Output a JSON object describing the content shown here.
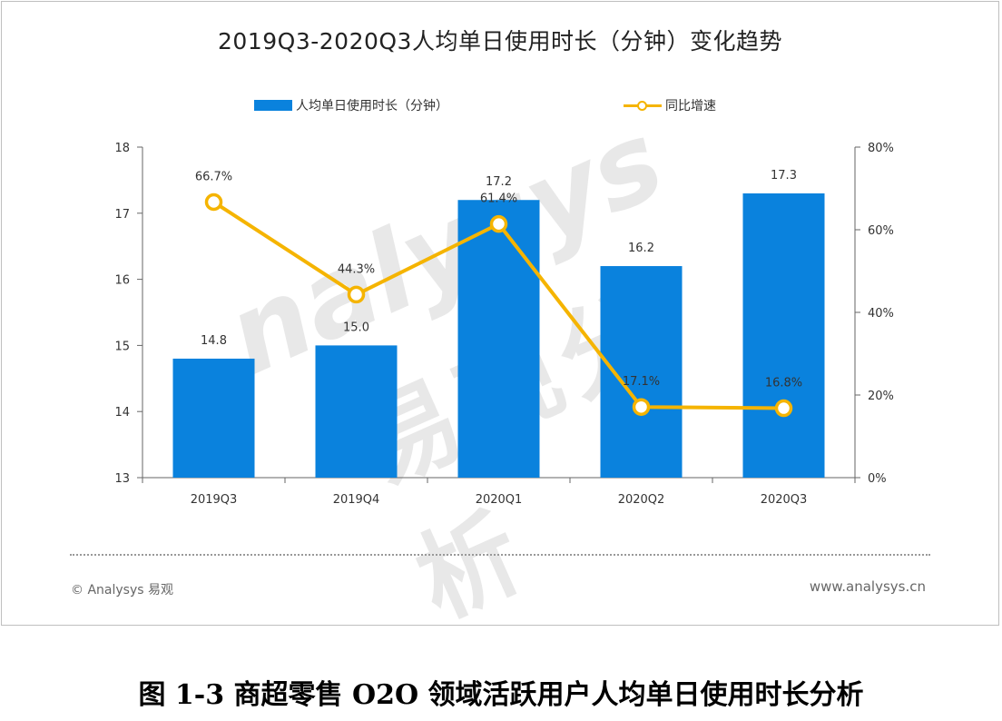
{
  "figure": {
    "title": "2019Q3-2020Q3人均单日使用时长（分钟）变化趋势",
    "watermark_en": "nalysys",
    "watermark_cn": "易观分析",
    "footer_left": "© Analysys 易观",
    "footer_right": "www.analysys.cn",
    "caption": "图 1-3 商超零售 O2O 领域活跃用户人均单日使用时长分析"
  },
  "legend": {
    "bar_label": "人均单日使用时长（分钟）",
    "line_label": "同比增速"
  },
  "colors": {
    "bar": "#0a82dd",
    "line": "#f5b400",
    "axis": "#666666"
  },
  "chart_data": {
    "type": "bar",
    "title": "2019Q3-2020Q3人均单日使用时长（分钟）变化趋势",
    "categories": [
      "2019Q3",
      "2019Q4",
      "2020Q1",
      "2020Q2",
      "2020Q3"
    ],
    "series": [
      {
        "name": "人均单日使用时长（分钟）",
        "type": "bar",
        "axis": "left",
        "values": [
          14.8,
          15.0,
          17.2,
          16.2,
          17.3
        ],
        "labels": [
          "14.8",
          "15.0",
          "17.2",
          "16.2",
          "17.3"
        ]
      },
      {
        "name": "同比增速",
        "type": "line",
        "axis": "right",
        "values": [
          66.7,
          44.3,
          61.4,
          17.1,
          16.8
        ],
        "labels": [
          "66.7%",
          "44.3%",
          "61.4%",
          "17.1%",
          "16.8%"
        ]
      }
    ],
    "y_left": {
      "min": 13,
      "max": 18,
      "ticks": [
        "13",
        "14",
        "15",
        "16",
        "17",
        "18"
      ]
    },
    "y_right": {
      "min": 0,
      "max": 80,
      "ticks": [
        "0%",
        "20%",
        "40%",
        "60%",
        "80%"
      ]
    },
    "grid": false,
    "legend_position": "top"
  }
}
